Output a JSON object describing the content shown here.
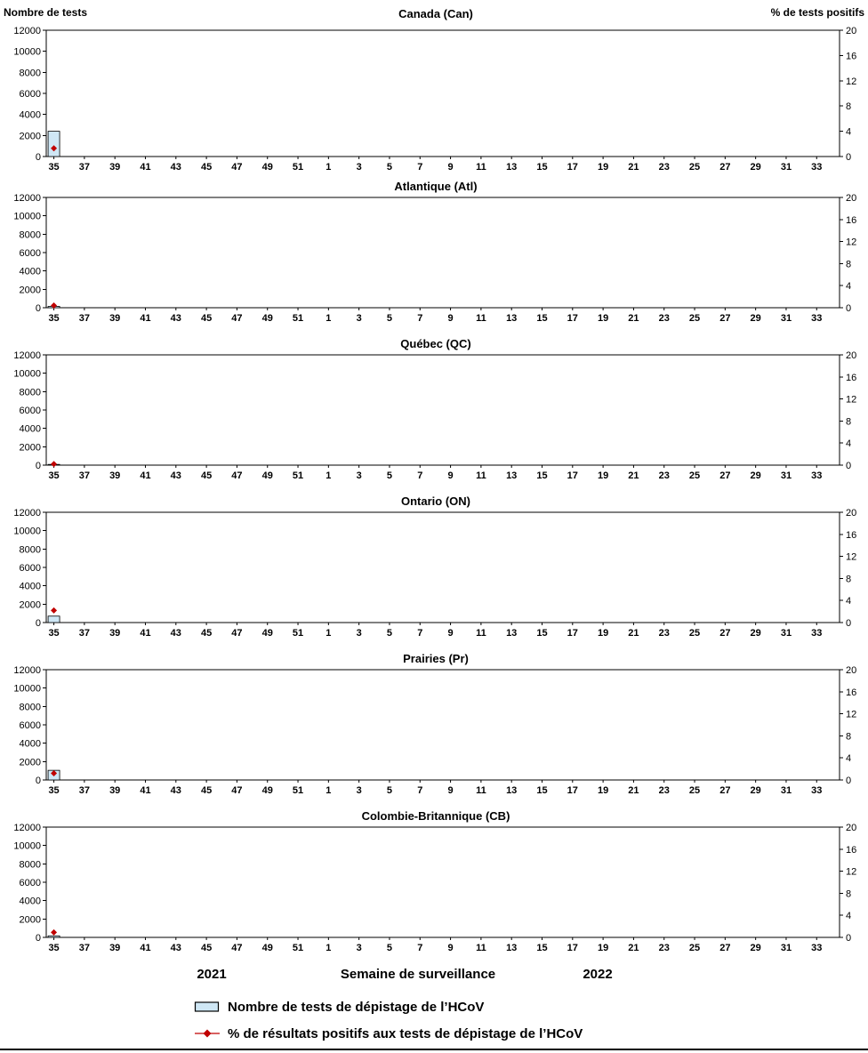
{
  "axes": {
    "left_axis_label": "Nombre de tests",
    "right_axis_label": "% de tests positifs",
    "left_ticks": [
      0,
      2000,
      4000,
      6000,
      8000,
      10000,
      12000
    ],
    "left_max": 12000,
    "right_ticks": [
      0,
      4,
      8,
      12,
      16,
      20
    ],
    "right_max": 20,
    "x_tick_labels": [
      "35",
      "37",
      "39",
      "41",
      "43",
      "45",
      "47",
      "49",
      "51",
      "1",
      "3",
      "5",
      "7",
      "9",
      "11",
      "13",
      "15",
      "17",
      "19",
      "21",
      "23",
      "25",
      "27",
      "29",
      "31",
      "33"
    ],
    "weeks_per_row": 52
  },
  "style": {
    "bar_fill": "#cfe7f5",
    "bar_stroke": "#000000",
    "line_color": "#c00000"
  },
  "footer": {
    "year_left": "2021",
    "x_axis_title": "Semaine de surveillance",
    "year_right": "2022"
  },
  "legend": {
    "items": [
      {
        "label": "Nombre de tests de dépistage de l’HCoV",
        "marker": "bar"
      },
      {
        "label": "% de résultats positifs aux tests de dépistage de l’HCoV",
        "marker": "line-diamond"
      }
    ]
  },
  "chart_data": [
    {
      "type": "bar+line",
      "title": "Canada (Can)",
      "x": [
        35
      ],
      "ylim_left": [
        0,
        12000
      ],
      "ylim_right": [
        0,
        20
      ],
      "series": [
        {
          "name": "Nombre de tests",
          "axis": "left",
          "kind": "bar",
          "values": [
            2400
          ]
        },
        {
          "name": "% de tests positifs",
          "axis": "right",
          "kind": "line-diamond",
          "values": [
            1.3
          ]
        }
      ]
    },
    {
      "type": "bar+line",
      "title": "Atlantique (Atl)",
      "x": [
        35
      ],
      "ylim_left": [
        0,
        12000
      ],
      "ylim_right": [
        0,
        20
      ],
      "series": [
        {
          "name": "Nombre de tests",
          "axis": "left",
          "kind": "bar",
          "values": [
            150
          ]
        },
        {
          "name": "% de tests positifs",
          "axis": "right",
          "kind": "line-diamond",
          "values": [
            0.4
          ]
        }
      ]
    },
    {
      "type": "bar+line",
      "title": "Québec (QC)",
      "x": [
        35
      ],
      "ylim_left": [
        0,
        12000
      ],
      "ylim_right": [
        0,
        20
      ],
      "series": [
        {
          "name": "Nombre de tests",
          "axis": "left",
          "kind": "bar",
          "values": [
            80
          ]
        },
        {
          "name": "% de tests positifs",
          "axis": "right",
          "kind": "line-diamond",
          "values": [
            0.2
          ]
        }
      ]
    },
    {
      "type": "bar+line",
      "title": "Ontario (ON)",
      "x": [
        35
      ],
      "ylim_left": [
        0,
        12000
      ],
      "ylim_right": [
        0,
        20
      ],
      "series": [
        {
          "name": "Nombre de tests",
          "axis": "left",
          "kind": "bar",
          "values": [
            700
          ]
        },
        {
          "name": "% de tests positifs",
          "axis": "right",
          "kind": "line-diamond",
          "values": [
            2.2
          ]
        }
      ]
    },
    {
      "type": "bar+line",
      "title": "Prairies (Pr)",
      "x": [
        35
      ],
      "ylim_left": [
        0,
        12000
      ],
      "ylim_right": [
        0,
        20
      ],
      "series": [
        {
          "name": "Nombre de tests",
          "axis": "left",
          "kind": "bar",
          "values": [
            1050
          ]
        },
        {
          "name": "% de tests positifs",
          "axis": "right",
          "kind": "line-diamond",
          "values": [
            1.2
          ]
        }
      ]
    },
    {
      "type": "bar+line",
      "title": "Colombie-Britannique (CB)",
      "x": [
        35
      ],
      "ylim_left": [
        0,
        12000
      ],
      "ylim_right": [
        0,
        20
      ],
      "series": [
        {
          "name": "Nombre de tests",
          "axis": "left",
          "kind": "bar",
          "values": [
            170
          ]
        },
        {
          "name": "% de tests positifs",
          "axis": "right",
          "kind": "line-diamond",
          "values": [
            0.9
          ]
        }
      ]
    }
  ]
}
